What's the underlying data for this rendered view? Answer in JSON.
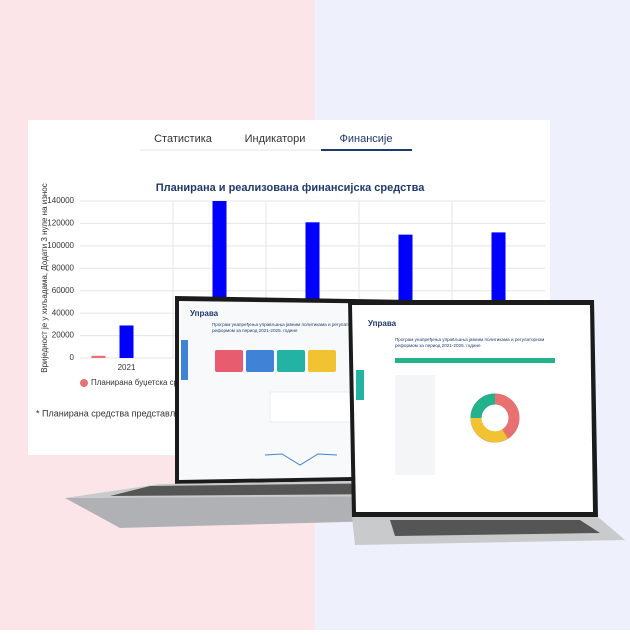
{
  "tabs": [
    "Статистика",
    "Индикатори",
    "Финансије"
  ],
  "chart_data": {
    "type": "bar",
    "title": "Планирана и реализована финансијска средства",
    "y_label": "Вриједност је у хиљадама, Додати 3 нуле на износ",
    "categories": [
      "2021",
      null,
      null,
      null,
      null
    ],
    "series": [
      {
        "name": "Планирана буџетска средства",
        "color": "#e57373",
        "values": [
          2000,
          null,
          null,
          null,
          null
        ]
      },
      {
        "color": "#0000ff",
        "values": [
          29000,
          140000,
          121000,
          110000,
          112000
        ]
      }
    ],
    "ylim": [
      0,
      140000
    ],
    "yticks": [
      0,
      20000,
      40000,
      60000,
      80000,
      100000,
      120000,
      140000
    ],
    "grid": true
  },
  "footnote": "* Планирана средства представљају",
  "laptop_left": {
    "logo": "Управа",
    "heading": "Програм унапређења управљања јавним политикама и регулаторном реформом за период 2021-2025. године"
  },
  "laptop_right": {
    "logo": "Управа",
    "heading": "Програм унапређења управљања јавним политикама и регулаторном реформом за период 2021-2025. године"
  }
}
